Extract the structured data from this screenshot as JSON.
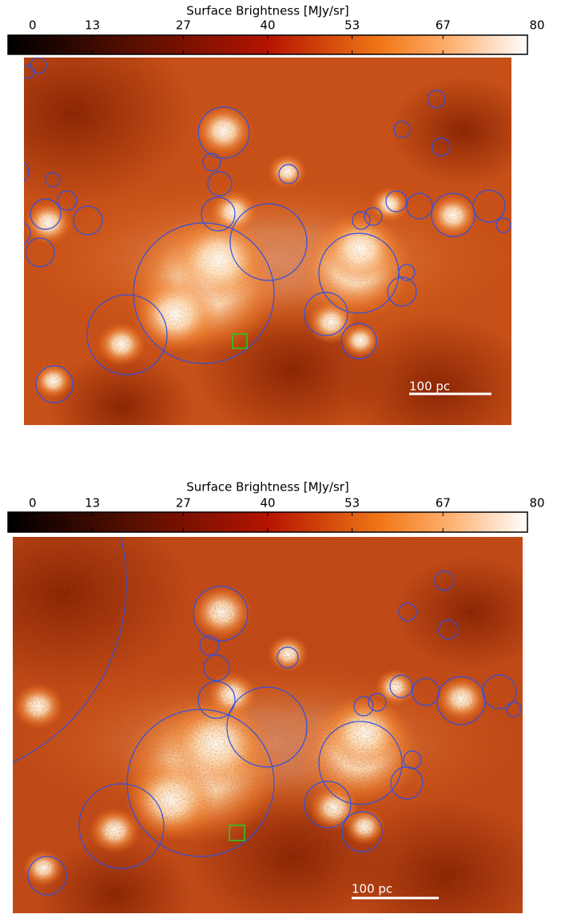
{
  "panels": [
    {
      "colorbar": {
        "label": "Surface Brightness [MJy/sr]",
        "lim": [
          0,
          80
        ],
        "ticks": [
          0,
          13,
          27,
          40,
          53,
          67,
          80
        ]
      },
      "scale_bar": "100 pc"
    },
    {
      "colorbar": {
        "label": "Surface Brightness [MJy/sr]",
        "lim": [
          0,
          80
        ],
        "ticks": [
          0,
          13,
          27,
          40,
          53,
          67,
          80
        ]
      },
      "scale_bar": "100 pc"
    }
  ]
}
